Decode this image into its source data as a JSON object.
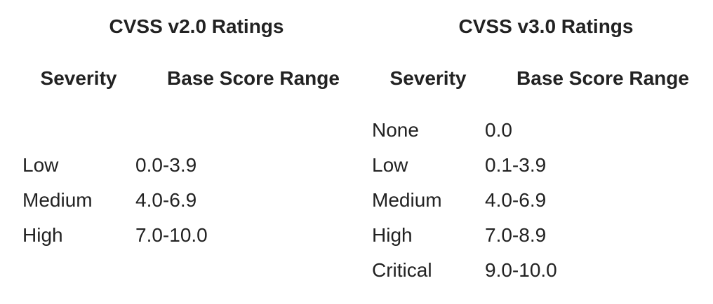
{
  "tables": [
    {
      "title": "CVSS v2.0 Ratings",
      "headers": [
        "Severity",
        "Base Score Range"
      ],
      "rows": [
        [
          "Low",
          "0.0-3.9"
        ],
        [
          "Medium",
          "4.0-6.9"
        ],
        [
          "High",
          "7.0-10.0"
        ]
      ]
    },
    {
      "title": "CVSS v3.0 Ratings",
      "headers": [
        "Severity",
        "Base Score Range"
      ],
      "rows": [
        [
          "None",
          "0.0"
        ],
        [
          "Low",
          "0.1-3.9"
        ],
        [
          "Medium",
          "4.0-6.9"
        ],
        [
          "High",
          "7.0-8.9"
        ],
        [
          "Critical",
          "9.0-10.0"
        ]
      ]
    }
  ]
}
